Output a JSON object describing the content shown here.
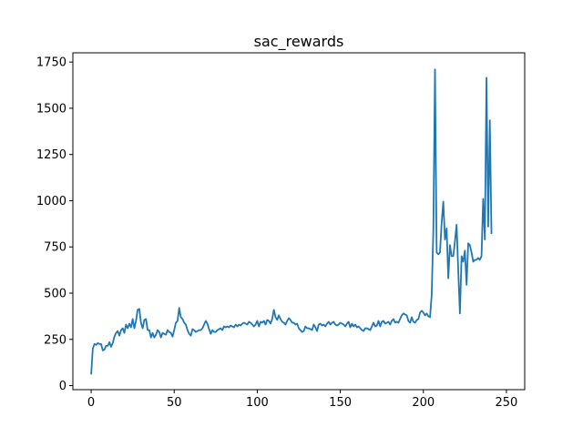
{
  "chart_data": {
    "type": "line",
    "title": "sac_rewards",
    "xlabel": "",
    "ylabel": "",
    "xlim": [
      -11,
      261
    ],
    "ylim": [
      -22,
      1800
    ],
    "xticks": [
      0,
      50,
      100,
      150,
      200,
      250
    ],
    "yticks": [
      0,
      250,
      500,
      750,
      1000,
      1250,
      1500,
      1750
    ],
    "grid": false,
    "line_color": "#1f77b4",
    "series": [
      {
        "values": [
          60,
          200,
          225,
          220,
          230,
          225,
          225,
          190,
          195,
          215,
          215,
          235,
          210,
          230,
          265,
          285,
          295,
          270,
          300,
          310,
          285,
          330,
          310,
          335,
          315,
          360,
          310,
          350,
          410,
          415,
          340,
          310,
          355,
          360,
          300,
          300,
          260,
          285,
          260,
          275,
          300,
          290,
          260,
          285,
          280,
          275,
          300,
          290,
          285,
          265,
          300,
          340,
          350,
          420,
          370,
          360,
          340,
          330,
          300,
          280,
          270,
          305,
          300,
          290,
          295,
          300,
          300,
          310,
          330,
          350,
          335,
          305,
          280,
          300,
          290,
          290,
          300,
          305,
          310,
          300,
          320,
          315,
          320,
          315,
          325,
          320,
          315,
          330,
          320,
          330,
          325,
          335,
          340,
          335,
          330,
          345,
          340,
          330,
          320,
          330,
          350,
          320,
          345,
          340,
          350,
          330,
          355,
          350,
          335,
          360,
          410,
          370,
          355,
          380,
          360,
          345,
          340,
          330,
          350,
          365,
          355,
          340,
          340,
          330,
          335,
          310,
          300,
          290,
          295,
          320,
          310,
          310,
          305,
          300,
          330,
          315,
          295,
          330,
          335,
          325,
          330,
          320,
          335,
          345,
          330,
          340,
          345,
          330,
          325,
          330,
          340,
          335,
          330,
          320,
          335,
          345,
          315,
          335,
          320,
          330,
          315,
          320,
          310,
          300,
          295,
          310,
          310,
          305,
          300,
          320,
          340,
          320,
          325,
          350,
          320,
          345,
          350,
          335,
          340,
          345,
          330,
          350,
          360,
          340,
          345,
          340,
          360,
          380,
          390,
          385,
          380,
          350,
          340,
          370,
          345,
          340,
          355,
          360,
          395,
          405,
          395,
          380,
          390,
          375,
          370,
          490,
          840,
          1710,
          720,
          710,
          720,
          880,
          995,
          790,
          850,
          580,
          760,
          700,
          700,
          780,
          870,
          620,
          390,
          700,
          670,
          730,
          545,
          770,
          760,
          720,
          670,
          680,
          680,
          690,
          680,
          700,
          1010,
          790,
          1665,
          860,
          1435,
          820
        ]
      }
    ]
  }
}
